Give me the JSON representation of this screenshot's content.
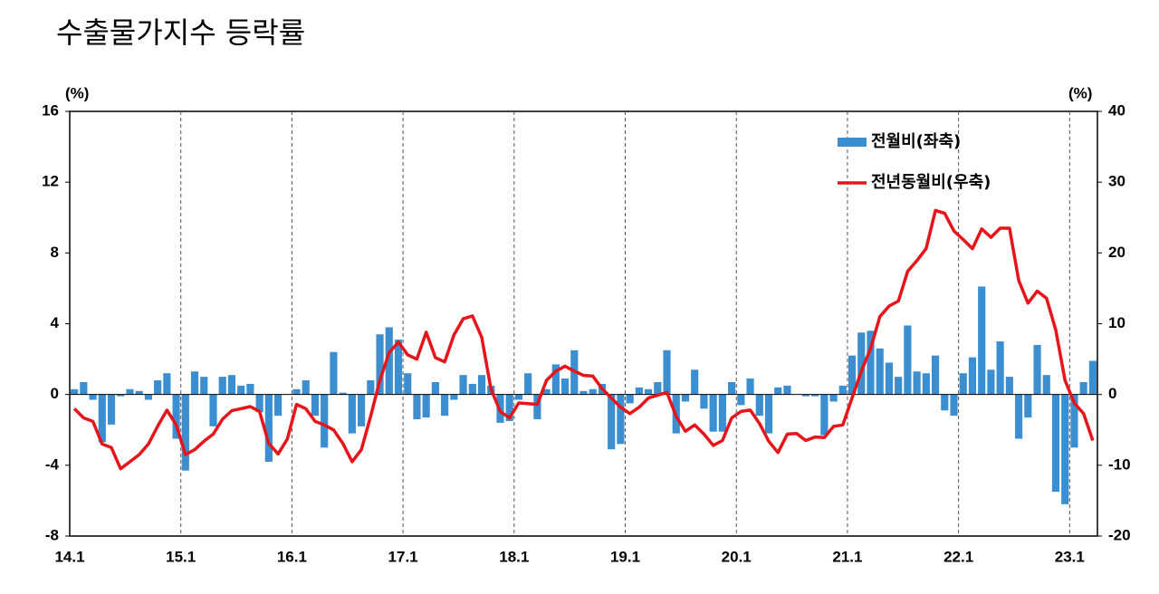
{
  "chart_data": {
    "type": "bar-line",
    "title": "수출물가지수 등락률",
    "y_label": "(%)",
    "y2_label": "(%)",
    "categories": [
      "14.1",
      null,
      null,
      null,
      null,
      null,
      null,
      null,
      null,
      null,
      null,
      null,
      "15.1",
      null,
      null,
      null,
      null,
      null,
      null,
      null,
      null,
      null,
      null,
      null,
      "16.1",
      null,
      null,
      null,
      null,
      null,
      null,
      null,
      null,
      null,
      null,
      null,
      "17.1",
      null,
      null,
      null,
      null,
      null,
      null,
      null,
      null,
      null,
      null,
      null,
      "18.1",
      null,
      null,
      null,
      null,
      null,
      null,
      null,
      null,
      null,
      null,
      null,
      "19.1",
      null,
      null,
      null,
      null,
      null,
      null,
      null,
      null,
      null,
      null,
      null,
      "20.1",
      null,
      null,
      null,
      null,
      null,
      null,
      null,
      null,
      null,
      null,
      null,
      "21.1",
      null,
      null,
      null,
      null,
      null,
      null,
      null,
      null,
      null,
      null,
      null,
      "22.1",
      null,
      null,
      null,
      null,
      null,
      null,
      null,
      null,
      null,
      null,
      null,
      "23.1",
      null,
      null
    ],
    "series": [
      {
        "name": "전월비(좌축)",
        "type": "bar",
        "color": "#3b8fd1",
        "values": [
          0.3,
          0.7,
          -0.3,
          -2.7,
          -1.7,
          -0.1,
          0.3,
          0.2,
          -0.3,
          0.8,
          1.2,
          -2.5,
          -4.3,
          1.3,
          1.0,
          -1.8,
          1.0,
          1.1,
          0.5,
          0.6,
          -1.0,
          -3.8,
          -1.2,
          0.0,
          0.3,
          0.8,
          -1.2,
          -3.0,
          2.4,
          0.1,
          -2.2,
          -1.8,
          0.8,
          3.4,
          3.8,
          3.1,
          1.2,
          -1.4,
          -1.3,
          0.7,
          -1.2,
          -0.3,
          1.1,
          0.6,
          1.1,
          0.5,
          -1.6,
          -1.5,
          -0.3,
          1.2,
          -1.4,
          0.3,
          1.7,
          0.9,
          2.5,
          0.2,
          0.3,
          0.6,
          -3.1,
          -2.8,
          -0.5,
          0.4,
          0.3,
          0.7,
          2.5,
          -2.2,
          -0.4,
          1.4,
          -0.8,
          -2.1,
          -2.1,
          0.7,
          -0.6,
          0.9,
          -1.2,
          -2.2,
          0.4,
          0.5,
          0.0,
          -0.1,
          -0.1,
          -2.3,
          -0.4,
          0.5,
          2.2,
          3.5,
          3.6,
          2.6,
          1.8,
          1.0,
          3.9,
          1.3,
          1.2,
          2.2,
          -0.9,
          -1.2,
          1.2,
          2.1,
          6.1,
          1.4,
          3.0,
          1.0,
          -2.5,
          -1.3,
          2.8,
          1.1,
          -5.5,
          -6.2,
          -3.0,
          0.7,
          1.9
        ]
      },
      {
        "name": "전년동월비(우축)",
        "type": "line",
        "axis": "y2",
        "color": "#e8141b",
        "values": [
          -2,
          -3.3,
          -3.8,
          -7,
          -7.5,
          -10.5,
          -9.5,
          -8.5,
          -7,
          -4.5,
          -2.2,
          -4.3,
          -8.5,
          -7.8,
          -6.6,
          -5.6,
          -3.5,
          -2.3,
          -2,
          -1.7,
          -2.4,
          -6.9,
          -8.4,
          -6.3,
          -1.4,
          -2,
          -3.8,
          -4.3,
          -5,
          -6.9,
          -9.5,
          -7.8,
          -3.1,
          2,
          5.9,
          7.4,
          5.6,
          5,
          8.8,
          5.2,
          4.6,
          8.4,
          10.7,
          11.1,
          8.1,
          0.8,
          -2.4,
          -3.3,
          -1.2,
          -1.3,
          -1.4,
          2,
          3.3,
          4,
          3.3,
          2.7,
          2.6,
          0.8,
          -0.5,
          -1.8,
          -2.7,
          -1.8,
          -0.5,
          -0.1,
          0.3,
          -3.1,
          -5.2,
          -4.3,
          -5.6,
          -7.2,
          -6.5,
          -3.3,
          -2.4,
          -2.2,
          -4.1,
          -6.6,
          -8.2,
          -5.6,
          -5.5,
          -6.5,
          -6,
          -6.1,
          -4.5,
          -4.3,
          -0.5,
          3.3,
          6.5,
          11,
          12.5,
          13.2,
          17.4,
          18.9,
          20.6,
          26,
          25.6,
          23.1,
          21.9,
          20.6,
          23.4,
          22.2,
          23.5,
          23.5,
          16.1,
          12.9,
          14.6,
          13.6,
          9.1,
          2,
          -1.2,
          -2.7,
          -6.5
        ]
      }
    ],
    "ylim": [
      -8,
      16
    ],
    "yticks": [
      -8,
      -4,
      0,
      4,
      8,
      12,
      16
    ],
    "y2lim": [
      -20,
      40
    ],
    "y2ticks": [
      -20,
      -10,
      0,
      10,
      20,
      30,
      40
    ],
    "x_grid": "dashed"
  }
}
